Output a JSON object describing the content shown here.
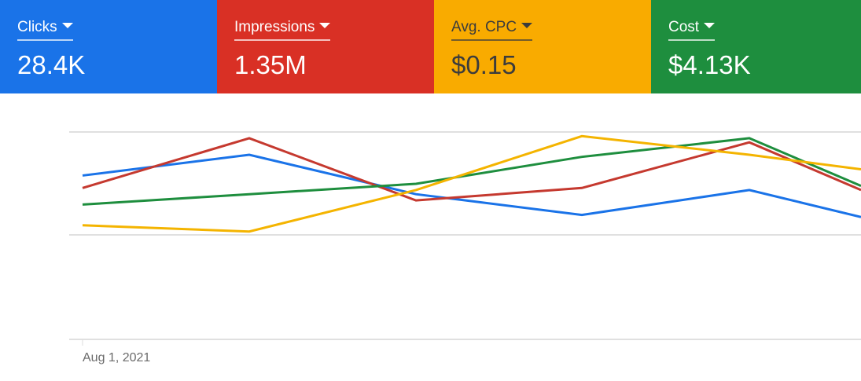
{
  "metrics": [
    {
      "label": "Clicks",
      "value": "28.4K",
      "color": "#1a73e8"
    },
    {
      "label": "Impressions",
      "value": "1.35M",
      "color": "#d93025"
    },
    {
      "label": "Avg. CPC",
      "value": "$0.15",
      "color": "#f9ab00"
    },
    {
      "label": "Cost",
      "value": "$4.13K",
      "color": "#1e8e3e"
    }
  ],
  "chart_data": {
    "type": "line",
    "x_tick_labels": [
      "Aug 1, 2021"
    ],
    "grid": true,
    "ylim": [
      0,
      100
    ],
    "series": [
      {
        "metric": "Clicks",
        "color": "#1a73e8",
        "values": [
          79,
          89,
          70,
          60,
          72,
          59
        ]
      },
      {
        "metric": "Impressions",
        "color": "#c5392f",
        "values": [
          73,
          97,
          67,
          73,
          95,
          72
        ]
      },
      {
        "metric": "Cost",
        "color": "#1e8e3e",
        "values": [
          65,
          70,
          75,
          88,
          97,
          74
        ]
      },
      {
        "metric": "Avg. CPC",
        "color": "#f4b400",
        "values": [
          55,
          52,
          72,
          98,
          89,
          82
        ]
      }
    ]
  }
}
